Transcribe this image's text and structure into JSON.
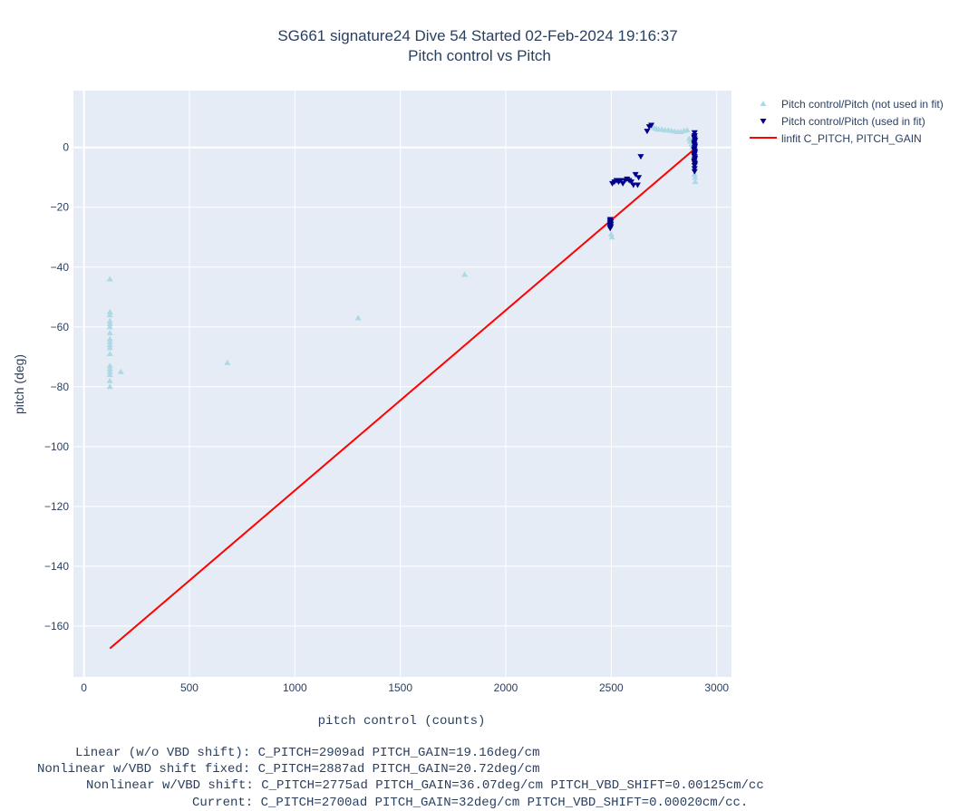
{
  "chart_data": {
    "type": "scatter",
    "title": "SG661 signature24 Dive 54 Started 02-Feb-2024 19:16:37",
    "subtitle": "Pitch control vs Pitch",
    "xlabel": "pitch control (counts)",
    "ylabel": "pitch (deg)",
    "xlim": [
      -50,
      3070
    ],
    "ylim": [
      -177,
      19
    ],
    "xticks": [
      0,
      500,
      1000,
      1500,
      2000,
      2500,
      3000
    ],
    "yticks": [
      0,
      -20,
      -40,
      -60,
      -80,
      -100,
      -120,
      -140,
      -160
    ],
    "ytick_labels": [
      "0",
      "−20",
      "−40",
      "−60",
      "−80",
      "−100",
      "−120",
      "−140",
      "−160"
    ],
    "grid": true,
    "legend_position": "top-right, outside plot",
    "colors": {
      "not_used": "#add8e6",
      "used": "#00008b",
      "fit": "#ff0000",
      "plot_bg": "#e5ecf6",
      "grid": "#ffffff"
    },
    "series": [
      {
        "name": "Pitch control/Pitch (not used in fit)",
        "marker": "triangle-up",
        "color": "#add8e6",
        "points": [
          [
            123,
            -44
          ],
          [
            123,
            -55
          ],
          [
            123,
            -56
          ],
          [
            123,
            -58
          ],
          [
            123,
            -59
          ],
          [
            123,
            -60
          ],
          [
            123,
            -62
          ],
          [
            123,
            -64
          ],
          [
            123,
            -65
          ],
          [
            123,
            -66
          ],
          [
            123,
            -67
          ],
          [
            123,
            -69
          ],
          [
            123,
            -73
          ],
          [
            123,
            -74
          ],
          [
            123,
            -75
          ],
          [
            123,
            -76
          ],
          [
            123,
            -78
          ],
          [
            123,
            -80
          ],
          [
            175,
            -75
          ],
          [
            680,
            -72
          ],
          [
            1300,
            -57
          ],
          [
            1805,
            -42.5
          ],
          [
            2500,
            -29
          ],
          [
            2503,
            -30
          ],
          [
            2695,
            7
          ],
          [
            2705,
            6.5
          ],
          [
            2715,
            6.2
          ],
          [
            2725,
            6
          ],
          [
            2740,
            6
          ],
          [
            2755,
            5.8
          ],
          [
            2770,
            5.8
          ],
          [
            2785,
            5.6
          ],
          [
            2800,
            5.4
          ],
          [
            2815,
            5.2
          ],
          [
            2830,
            5.2
          ],
          [
            2845,
            5.6
          ],
          [
            2860,
            5.8
          ],
          [
            2870,
            3
          ],
          [
            2875,
            2
          ],
          [
            2880,
            1
          ],
          [
            2885,
            0
          ],
          [
            2895,
            -9
          ],
          [
            2897,
            -10
          ],
          [
            2898,
            -11.5
          ]
        ]
      },
      {
        "name": "Pitch control/Pitch (used in fit)",
        "marker": "triangle-down",
        "color": "#00008b",
        "points": [
          [
            2495,
            -24
          ],
          [
            2495,
            -24.5
          ],
          [
            2495,
            -25
          ],
          [
            2495,
            -25.5
          ],
          [
            2495,
            -26
          ],
          [
            2495,
            -26.5
          ],
          [
            2495,
            -27
          ],
          [
            2498,
            -24.8
          ],
          [
            2498,
            -25.6
          ],
          [
            2498,
            -26.4
          ],
          [
            2505,
            -12
          ],
          [
            2515,
            -11.5
          ],
          [
            2525,
            -11
          ],
          [
            2535,
            -11.5
          ],
          [
            2545,
            -11
          ],
          [
            2555,
            -12
          ],
          [
            2565,
            -11
          ],
          [
            2575,
            -10.5
          ],
          [
            2585,
            -11
          ],
          [
            2595,
            -11.5
          ],
          [
            2605,
            -12.5
          ],
          [
            2615,
            -9
          ],
          [
            2625,
            -12.5
          ],
          [
            2630,
            -10
          ],
          [
            2640,
            -3
          ],
          [
            2670,
            5.5
          ],
          [
            2680,
            7
          ],
          [
            2690,
            7.5
          ],
          [
            2895,
            5
          ],
          [
            2895,
            4
          ],
          [
            2895,
            3
          ],
          [
            2895,
            2
          ],
          [
            2895,
            1
          ],
          [
            2895,
            0
          ],
          [
            2895,
            -1
          ],
          [
            2895,
            -2
          ],
          [
            2895,
            -3
          ],
          [
            2895,
            -4
          ],
          [
            2895,
            -5
          ],
          [
            2895,
            -6
          ],
          [
            2895,
            -7
          ],
          [
            2895,
            -8
          ],
          [
            2893,
            3.5
          ],
          [
            2893,
            1.5
          ],
          [
            2893,
            -0.5
          ],
          [
            2893,
            -2.5
          ],
          [
            2893,
            -4.5
          ],
          [
            2897,
            2.5
          ],
          [
            2897,
            0.5
          ],
          [
            2897,
            -1.5
          ],
          [
            2897,
            -3.5
          ],
          [
            2897,
            -5.5
          ]
        ]
      },
      {
        "name": "linfit C_PITCH, PITCH_GAIN",
        "marker": "line",
        "color": "#ff0000",
        "points": [
          [
            123,
            -167.5
          ],
          [
            2895,
            -0.5
          ]
        ]
      }
    ],
    "annotations": [
      "Linear (w/o VBD shift): C_PITCH=2909ad PITCH_GAIN=19.16deg/cm",
      "Nonlinear w/VBD shift fixed: C_PITCH=2887ad PITCH_GAIN=20.72deg/cm",
      "Nonlinear w/VBD shift: C_PITCH=2775ad PITCH_GAIN=36.07deg/cm PITCH_VBD_SHIFT=0.00125cm/cc",
      "Current: C_PITCH=2700ad PITCH_GAIN=32deg/cm PITCH_VBD_SHIFT=0.00020cm/cc."
    ]
  }
}
